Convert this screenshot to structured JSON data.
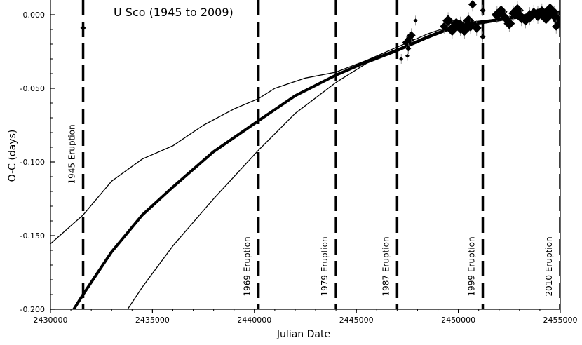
{
  "chart_data": {
    "type": "scatter",
    "title": "U Sco (1945 to 2009)",
    "xlabel": "Julian Date",
    "ylabel": "O-C (days)",
    "xlim": [
      2430000,
      2455000
    ],
    "ylim": [
      -0.2,
      0.01
    ],
    "x_ticks": [
      {
        "value": 2430000,
        "label": "2430000"
      },
      {
        "value": 2435000,
        "label": "2435000"
      },
      {
        "value": 2440000,
        "label": "2440000"
      },
      {
        "value": 2445000,
        "label": "2445000"
      },
      {
        "value": 2450000,
        "label": "2450000"
      },
      {
        "value": 2455000,
        "label": "2455000"
      }
    ],
    "y_ticks": [
      {
        "value": 0.0,
        "label": "0.000"
      },
      {
        "value": -0.05,
        "label": "-0.050"
      },
      {
        "value": -0.1,
        "label": "-0.100"
      },
      {
        "value": -0.15,
        "label": "-0.150"
      },
      {
        "value": -0.2,
        "label": "-0.200"
      }
    ],
    "grid": false,
    "eruptions": [
      {
        "x": 2431600,
        "label": "1945 Eruption"
      },
      {
        "x": 2440200,
        "label": "1969 Eruption"
      },
      {
        "x": 2444000,
        "label": "1979 Eruption"
      },
      {
        "x": 2447000,
        "label": "1987 Eruption"
      },
      {
        "x": 2451200,
        "label": "1999 Eruption"
      },
      {
        "x": 2455000,
        "label": "2010 Eruption"
      }
    ],
    "series": [
      {
        "kind": "model-best",
        "points": [
          [
            2430000,
            -0.225
          ],
          [
            2431600,
            -0.19
          ],
          [
            2433000,
            -0.161
          ],
          [
            2434500,
            -0.136
          ],
          [
            2436000,
            -0.117
          ],
          [
            2438000,
            -0.093
          ],
          [
            2440200,
            -0.072
          ],
          [
            2442000,
            -0.055
          ],
          [
            2444000,
            -0.041
          ],
          [
            2445500,
            -0.032
          ],
          [
            2447000,
            -0.024
          ],
          [
            2448500,
            -0.015
          ],
          [
            2450000,
            -0.007
          ],
          [
            2451200,
            -0.005
          ],
          [
            2452500,
            -0.002
          ],
          [
            2454000,
            0.001
          ],
          [
            2455000,
            0.002
          ]
        ]
      },
      {
        "kind": "model-upper",
        "points": [
          [
            2429800,
            -0.158
          ],
          [
            2431600,
            -0.136
          ],
          [
            2433000,
            -0.113
          ],
          [
            2434500,
            -0.098
          ],
          [
            2436000,
            -0.089
          ],
          [
            2437500,
            -0.075
          ],
          [
            2439000,
            -0.064
          ],
          [
            2440200,
            -0.057
          ],
          [
            2441000,
            -0.05
          ],
          [
            2442500,
            -0.043
          ],
          [
            2444000,
            -0.039
          ],
          [
            2445500,
            -0.031
          ],
          [
            2447000,
            -0.022
          ],
          [
            2448500,
            -0.013
          ],
          [
            2450000,
            -0.006
          ],
          [
            2451200,
            -0.004
          ],
          [
            2452500,
            -0.002
          ],
          [
            2454000,
            0.0
          ],
          [
            2455000,
            0.0
          ]
        ]
      },
      {
        "kind": "model-lower",
        "points": [
          [
            2433300,
            -0.21
          ],
          [
            2434500,
            -0.185
          ],
          [
            2436000,
            -0.157
          ],
          [
            2438000,
            -0.125
          ],
          [
            2440200,
            -0.092
          ],
          [
            2442000,
            -0.067
          ],
          [
            2444000,
            -0.046
          ],
          [
            2445500,
            -0.033
          ],
          [
            2447000,
            -0.025
          ],
          [
            2448500,
            -0.016
          ],
          [
            2450000,
            -0.008
          ],
          [
            2451200,
            -0.006
          ],
          [
            2452500,
            -0.003
          ],
          [
            2454000,
            -0.001
          ],
          [
            2455000,
            0.0
          ]
        ]
      }
    ],
    "observations": [
      {
        "x": 2431600,
        "y": -0.009,
        "size": 4
      },
      {
        "x": 2447200,
        "y": -0.03,
        "size": 3
      },
      {
        "x": 2447450,
        "y": -0.019,
        "size": 6
      },
      {
        "x": 2447600,
        "y": -0.017,
        "size": 7
      },
      {
        "x": 2447700,
        "y": -0.014,
        "size": 6
      },
      {
        "x": 2447550,
        "y": -0.023,
        "size": 4
      },
      {
        "x": 2447500,
        "y": -0.028,
        "size": 3
      },
      {
        "x": 2447900,
        "y": -0.004,
        "size": 3
      },
      {
        "x": 2449300,
        "y": -0.008,
        "size": 6
      },
      {
        "x": 2449500,
        "y": -0.004,
        "size": 8
      },
      {
        "x": 2449700,
        "y": -0.01,
        "size": 9
      },
      {
        "x": 2449900,
        "y": -0.006,
        "size": 8
      },
      {
        "x": 2450100,
        "y": -0.008,
        "size": 10
      },
      {
        "x": 2450300,
        "y": -0.01,
        "size": 9
      },
      {
        "x": 2450500,
        "y": -0.004,
        "size": 8
      },
      {
        "x": 2450600,
        "y": -0.008,
        "size": 7
      },
      {
        "x": 2450700,
        "y": 0.007,
        "size": 6
      },
      {
        "x": 2450900,
        "y": -0.009,
        "size": 7
      },
      {
        "x": 2451200,
        "y": 0.003,
        "size": 4
      },
      {
        "x": 2451200,
        "y": -0.015,
        "size": 4
      },
      {
        "x": 2451900,
        "y": 0.0,
        "size": 8
      },
      {
        "x": 2452100,
        "y": 0.002,
        "size": 9
      },
      {
        "x": 2452300,
        "y": -0.002,
        "size": 7
      },
      {
        "x": 2452500,
        "y": -0.006,
        "size": 8
      },
      {
        "x": 2452700,
        "y": 0.001,
        "size": 7
      },
      {
        "x": 2452900,
        "y": 0.003,
        "size": 9
      },
      {
        "x": 2453100,
        "y": -0.002,
        "size": 8
      },
      {
        "x": 2453300,
        "y": -0.004,
        "size": 7
      },
      {
        "x": 2453500,
        "y": -0.001,
        "size": 9
      },
      {
        "x": 2453700,
        "y": 0.001,
        "size": 8
      },
      {
        "x": 2453900,
        "y": 0.0,
        "size": 9
      },
      {
        "x": 2454100,
        "y": 0.002,
        "size": 8
      },
      {
        "x": 2454300,
        "y": -0.002,
        "size": 9
      },
      {
        "x": 2454500,
        "y": 0.003,
        "size": 10
      },
      {
        "x": 2454700,
        "y": 0.0,
        "size": 9
      },
      {
        "x": 2454900,
        "y": -0.004,
        "size": 8
      },
      {
        "x": 2455000,
        "y": -0.006,
        "size": 7
      },
      {
        "x": 2454800,
        "y": -0.008,
        "size": 6
      }
    ]
  }
}
